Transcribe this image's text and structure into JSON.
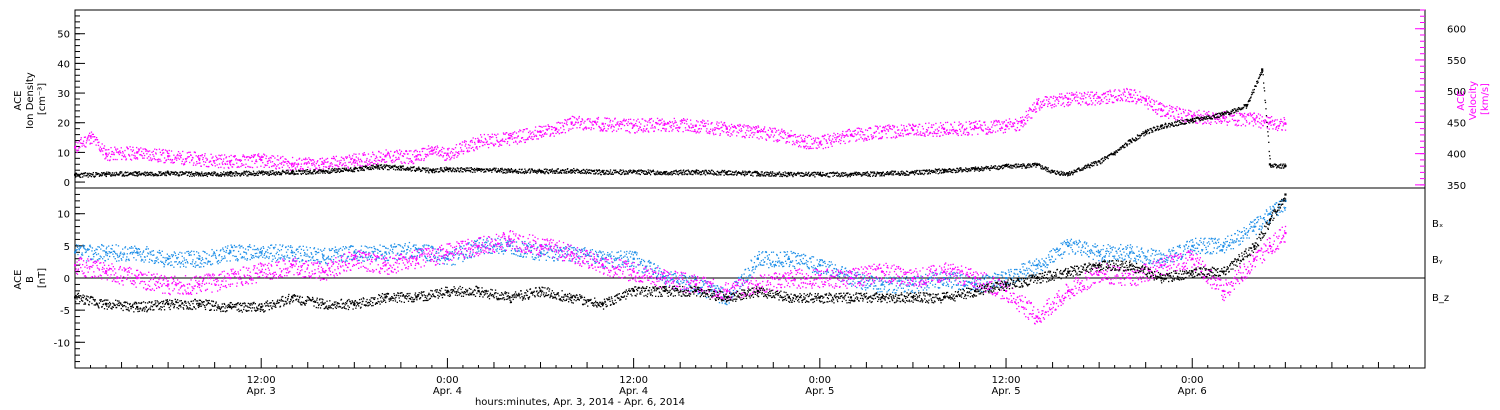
{
  "chart_data": [
    {
      "type": "scatter",
      "ylabel_lines": [
        "ACE",
        "Ion Density",
        "[cm⁻³]"
      ],
      "ylabel_right_lines": [
        "ACE",
        "Velocity",
        "[km/s]"
      ],
      "ylim": [
        -2,
        58
      ],
      "yticks": [
        "0",
        "10",
        "20",
        "30",
        "40",
        "50"
      ],
      "ylim_right": [
        345,
        630
      ],
      "yticks_right": [
        "350",
        "400",
        "450",
        "500",
        "550",
        "600"
      ],
      "colors": {
        "density": "#000000",
        "velocity": "#ff00ff"
      },
      "series": [
        {
          "key": "density",
          "color": "#000000",
          "points": [
            [
              0,
              2.5
            ],
            [
              2,
              2.8
            ],
            [
              4,
              3
            ],
            [
              6,
              3.2
            ],
            [
              8,
              2.8
            ],
            [
              10,
              3
            ],
            [
              12,
              3.2
            ],
            [
              14,
              3.5
            ],
            [
              16,
              3.8
            ],
            [
              18,
              4.5
            ],
            [
              19.5,
              5.3
            ],
            [
              21,
              5
            ],
            [
              23,
              4
            ],
            [
              24,
              4.5
            ],
            [
              26,
              4.2
            ],
            [
              28,
              4
            ],
            [
              30,
              3.8
            ],
            [
              32,
              4
            ],
            [
              34,
              3.5
            ],
            [
              36,
              3.6
            ],
            [
              38,
              3.4
            ],
            [
              40,
              3.5
            ],
            [
              42,
              3.3
            ],
            [
              44,
              3
            ],
            [
              46,
              2.8
            ],
            [
              48,
              2.7
            ],
            [
              50,
              2.8
            ],
            [
              52,
              3
            ],
            [
              54,
              3.3
            ],
            [
              56,
              4
            ],
            [
              58,
              4.5
            ],
            [
              60,
              5.5
            ],
            [
              62,
              5.8
            ],
            [
              63,
              3.5
            ],
            [
              64,
              3
            ],
            [
              66,
              7
            ],
            [
              67,
              10
            ],
            [
              68,
              14
            ],
            [
              69,
              17
            ],
            [
              70,
              19
            ],
            [
              72,
              21
            ],
            [
              74,
              23
            ],
            [
              75.5,
              26
            ],
            [
              76.5,
              38
            ],
            [
              77,
              6
            ],
            [
              78,
              5.5
            ]
          ]
        },
        {
          "key": "velocity",
          "color": "#ff00ff",
          "points": [
            [
              0,
              410
            ],
            [
              1,
              428
            ],
            [
              2,
              400
            ],
            [
              4,
              402
            ],
            [
              6,
              396
            ],
            [
              8,
              392
            ],
            [
              10,
              388
            ],
            [
              12,
              390
            ],
            [
              14,
              384
            ],
            [
              16,
              384
            ],
            [
              18,
              390
            ],
            [
              20,
              396
            ],
            [
              22,
              396
            ],
            [
              23,
              405
            ],
            [
              24,
              400
            ],
            [
              26,
              420
            ],
            [
              28,
              425
            ],
            [
              30,
              435
            ],
            [
              31,
              440
            ],
            [
              32,
              450
            ],
            [
              34,
              448
            ],
            [
              36,
              445
            ],
            [
              38,
              448
            ],
            [
              40,
              445
            ],
            [
              42,
              440
            ],
            [
              44,
              435
            ],
            [
              46,
              428
            ],
            [
              47,
              420
            ],
            [
              48,
              418
            ],
            [
              50,
              430
            ],
            [
              52,
              436
            ],
            [
              54,
              438
            ],
            [
              56,
              440
            ],
            [
              58,
              442
            ],
            [
              60,
              445
            ],
            [
              61,
              450
            ],
            [
              62,
              480
            ],
            [
              64,
              488
            ],
            [
              66,
              490
            ],
            [
              68,
              495
            ],
            [
              69,
              485
            ],
            [
              70,
              470
            ],
            [
              72,
              460
            ],
            [
              74,
              458
            ],
            [
              76,
              455
            ],
            [
              77,
              450
            ],
            [
              78,
              448
            ]
          ]
        }
      ]
    },
    {
      "type": "scatter",
      "ylabel_lines": [
        "ACE",
        "B",
        "[nT]"
      ],
      "ylim": [
        -14,
        14
      ],
      "yticks": [
        "-10",
        "-5",
        "0",
        "5",
        "10"
      ],
      "legend": [
        "Bₓ",
        "Bᵧ",
        "B_z"
      ],
      "legend_placement": "right",
      "colors": {
        "Bx": "#000000",
        "By": "#1e8fe8",
        "Bz": "#ff00ff"
      },
      "series": [
        {
          "key": "Bx",
          "color": "#000000",
          "points": [
            [
              0,
              -3
            ],
            [
              2,
              -4
            ],
            [
              4,
              -4.5
            ],
            [
              6,
              -4
            ],
            [
              8,
              -4
            ],
            [
              10,
              -4.5
            ],
            [
              12,
              -4.5
            ],
            [
              14,
              -3
            ],
            [
              16,
              -4
            ],
            [
              18,
              -4
            ],
            [
              20,
              -3
            ],
            [
              22,
              -3
            ],
            [
              24,
              -2
            ],
            [
              26,
              -2
            ],
            [
              28,
              -3
            ],
            [
              30,
              -2
            ],
            [
              32,
              -3
            ],
            [
              34,
              -4
            ],
            [
              36,
              -2
            ],
            [
              38,
              -2
            ],
            [
              40,
              -2
            ],
            [
              42,
              -3
            ],
            [
              44,
              -2
            ],
            [
              46,
              -3
            ],
            [
              48,
              -3
            ],
            [
              50,
              -3
            ],
            [
              52,
              -3
            ],
            [
              54,
              -3
            ],
            [
              56,
              -3
            ],
            [
              58,
              -2
            ],
            [
              60,
              -1
            ],
            [
              62,
              0
            ],
            [
              64,
              1
            ],
            [
              66,
              2
            ],
            [
              68,
              2
            ],
            [
              70,
              0
            ],
            [
              72,
              1
            ],
            [
              74,
              1
            ],
            [
              76,
              5
            ],
            [
              77,
              9
            ],
            [
              78,
              13
            ]
          ]
        },
        {
          "key": "By",
          "color": "#1e8fe8",
          "points": [
            [
              0,
              4
            ],
            [
              2,
              4
            ],
            [
              4,
              4
            ],
            [
              6,
              3
            ],
            [
              8,
              3
            ],
            [
              10,
              4
            ],
            [
              12,
              4
            ],
            [
              14,
              4
            ],
            [
              16,
              3.5
            ],
            [
              18,
              4
            ],
            [
              20,
              4
            ],
            [
              22,
              4.5
            ],
            [
              24,
              3
            ],
            [
              26,
              5
            ],
            [
              28,
              5
            ],
            [
              30,
              4
            ],
            [
              32,
              4
            ],
            [
              34,
              3
            ],
            [
              36,
              3
            ],
            [
              38,
              0
            ],
            [
              40,
              -1
            ],
            [
              42,
              -3
            ],
            [
              44,
              3
            ],
            [
              46,
              3
            ],
            [
              48,
              2
            ],
            [
              50,
              0
            ],
            [
              52,
              -1
            ],
            [
              54,
              -1
            ],
            [
              56,
              0
            ],
            [
              58,
              -1
            ],
            [
              60,
              0
            ],
            [
              62,
              2
            ],
            [
              64,
              5
            ],
            [
              66,
              4
            ],
            [
              68,
              4
            ],
            [
              70,
              3
            ],
            [
              72,
              5
            ],
            [
              74,
              5
            ],
            [
              76,
              8
            ],
            [
              77,
              10
            ],
            [
              78,
              12
            ]
          ]
        },
        {
          "key": "Bz",
          "color": "#ff00ff",
          "points": [
            [
              0,
              2
            ],
            [
              2,
              1
            ],
            [
              4,
              0
            ],
            [
              6,
              -1
            ],
            [
              8,
              -1
            ],
            [
              10,
              0
            ],
            [
              12,
              1
            ],
            [
              14,
              2
            ],
            [
              16,
              1
            ],
            [
              18,
              3
            ],
            [
              20,
              2
            ],
            [
              22,
              3
            ],
            [
              24,
              4
            ],
            [
              26,
              5
            ],
            [
              28,
              6
            ],
            [
              30,
              5
            ],
            [
              32,
              4
            ],
            [
              34,
              2
            ],
            [
              36,
              1
            ],
            [
              38,
              0
            ],
            [
              40,
              -1
            ],
            [
              42,
              -2
            ],
            [
              44,
              -1
            ],
            [
              46,
              0
            ],
            [
              48,
              0
            ],
            [
              50,
              0
            ],
            [
              52,
              1
            ],
            [
              54,
              0
            ],
            [
              56,
              1
            ],
            [
              58,
              0
            ],
            [
              60,
              -2
            ],
            [
              62,
              -6
            ],
            [
              64,
              -2
            ],
            [
              66,
              1
            ],
            [
              68,
              0
            ],
            [
              70,
              2
            ],
            [
              72,
              3
            ],
            [
              74,
              -2
            ],
            [
              76,
              3
            ],
            [
              77,
              5
            ],
            [
              78,
              7
            ]
          ]
        }
      ]
    }
  ],
  "x_axis": {
    "xlim": [
      0,
      87
    ],
    "ticks": [
      {
        "x": 12,
        "line1": "12:00",
        "line2": "Apr. 3"
      },
      {
        "x": 24,
        "line1": "0:00",
        "line2": "Apr. 4"
      },
      {
        "x": 36,
        "line1": "12:00",
        "line2": "Apr. 4"
      },
      {
        "x": 48,
        "line1": "0:00",
        "line2": "Apr. 5"
      },
      {
        "x": 60,
        "line1": "12:00",
        "line2": "Apr. 5"
      },
      {
        "x": 72,
        "line1": "0:00",
        "line2": "Apr. 6"
      }
    ],
    "xlabel": "hours:minutes, Apr.  3, 2014 - Apr.  6, 2014"
  }
}
